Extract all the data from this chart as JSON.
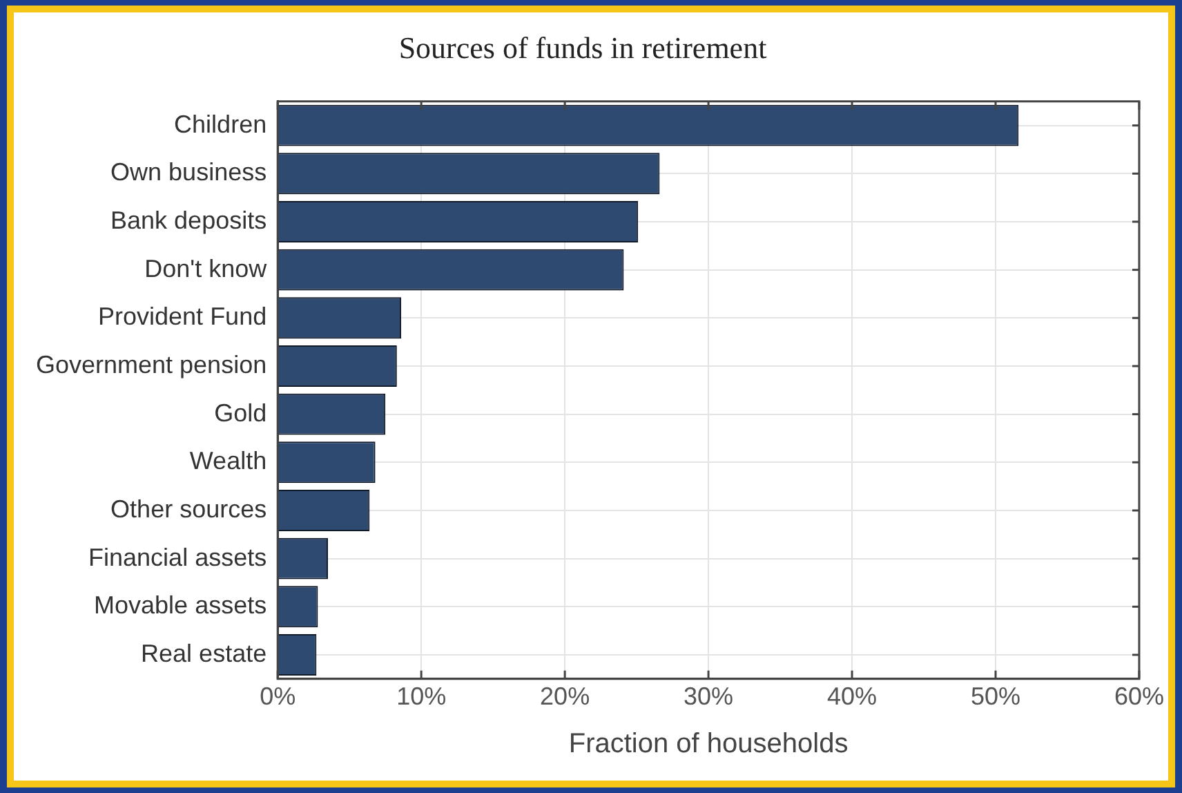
{
  "chart_data": {
    "type": "bar",
    "orientation": "horizontal",
    "title": "Sources of funds in retirement",
    "xlabel": "Fraction of households",
    "categories": [
      "Children",
      "Own business",
      "Bank deposits",
      "Don't know",
      "Provident Fund",
      "Government pension",
      "Gold",
      "Wealth",
      "Other sources",
      "Financial assets",
      "Movable assets",
      "Real estate"
    ],
    "values": [
      51.6,
      26.6,
      25.1,
      24.1,
      8.6,
      8.3,
      7.5,
      6.8,
      6.4,
      3.5,
      2.8,
      2.7
    ],
    "color": "#2e4a70",
    "xlim": [
      0,
      60
    ],
    "xticks": [
      {
        "value": 0,
        "label": "0%"
      },
      {
        "value": 10,
        "label": "10%"
      },
      {
        "value": 20,
        "label": "20%"
      },
      {
        "value": 30,
        "label": "30%"
      },
      {
        "value": 40,
        "label": "40%"
      },
      {
        "value": 50,
        "label": "50%"
      },
      {
        "value": 60,
        "label": "60%"
      }
    ],
    "grid": true
  }
}
